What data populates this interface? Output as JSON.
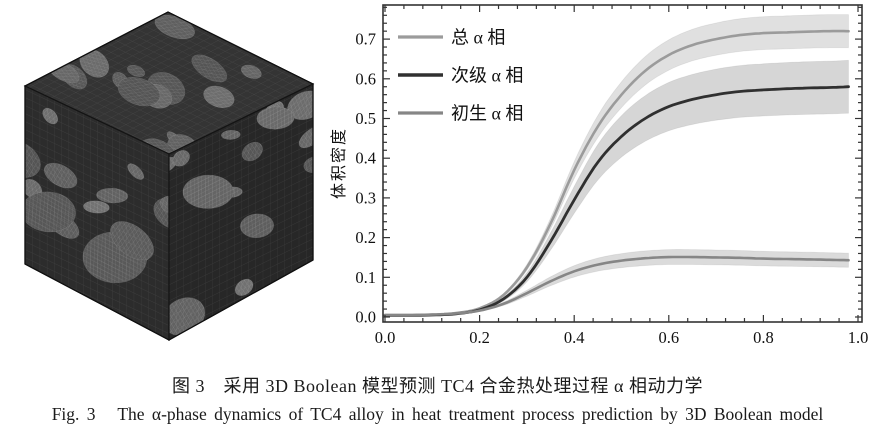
{
  "figure": {
    "caption_zh": "图 3　采用 3D Boolean 模型预测 TC4 合金热处理过程 α 相动力学",
    "caption_en": "Fig. 3   The α-phase dynamics of TC4 alloy in heat treatment process prediction by 3D Boolean model"
  },
  "cube": {
    "alt": "3D Boolean model mesh cube of simulated TC4 microstructure: gray ellipsoidal α-phase particles on dark matrix",
    "face_colors": {
      "top": "#343434",
      "left": "#2c2c2c",
      "right": "#272727"
    },
    "edge_color": "#141414",
    "mesh_line_color": "rgba(255,255,255,0.10)",
    "particle_mesh_color": "rgba(255,255,255,0.22)",
    "particle_gray_min": 84,
    "particle_gray_max": 114,
    "particles_per_face": 15,
    "seed": 11
  },
  "chart_data": {
    "type": "line",
    "title": "",
    "xlabel": "",
    "ylabel": "体积密度",
    "xlim": [
      0,
      1.0
    ],
    "ylim": [
      0,
      0.785
    ],
    "grid": false,
    "legend_position": "top-left",
    "x_tick_values": [
      0,
      0.2,
      0.4,
      0.6,
      0.8,
      1.0
    ],
    "x_tick_labels": [
      "0.0",
      "0.2",
      "0.4",
      "0.6",
      "0.8",
      "1.0"
    ],
    "y_tick_values": [
      0,
      0.1,
      0.2,
      0.3,
      0.4,
      0.5,
      0.6,
      0.7
    ],
    "y_tick_labels": [
      "0.0",
      "0.1",
      "0.2",
      "0.3",
      "0.4",
      "0.5",
      "0.6",
      "0.7"
    ],
    "minor_x_step": 0.04,
    "minor_y_step": 0.02,
    "frame_color": "#333333",
    "text_color": "#111111",
    "x": [
      0,
      0.05,
      0.1,
      0.15,
      0.2,
      0.25,
      0.3,
      0.35,
      0.4,
      0.45,
      0.5,
      0.55,
      0.6,
      0.65,
      0.7,
      0.75,
      0.8,
      0.85,
      0.9,
      0.94,
      0.98
    ],
    "series": [
      {
        "name": "总 α 相",
        "color": "#9b9b9b",
        "line_width": 2.6,
        "band_frac": 0.058,
        "band_color": "rgba(0,0,0,0.12)",
        "values": [
          0.005,
          0.005,
          0.006,
          0.01,
          0.022,
          0.055,
          0.125,
          0.235,
          0.37,
          0.48,
          0.56,
          0.62,
          0.66,
          0.685,
          0.7,
          0.71,
          0.715,
          0.717,
          0.719,
          0.72,
          0.72
        ]
      },
      {
        "name": "次级 α 相",
        "color": "#303030",
        "line_width": 2.8,
        "band_frac": 0.115,
        "band_color": "rgba(0,0,0,0.16)",
        "values": [
          0.004,
          0.004,
          0.005,
          0.008,
          0.018,
          0.045,
          0.1,
          0.19,
          0.295,
          0.39,
          0.455,
          0.5,
          0.53,
          0.548,
          0.56,
          0.568,
          0.572,
          0.575,
          0.577,
          0.578,
          0.58
        ]
      },
      {
        "name": "初生 α 相",
        "color": "#868686",
        "line_width": 2.6,
        "band_frac": 0.125,
        "band_color": "rgba(0,0,0,0.14)",
        "values": [
          0.005,
          0.005,
          0.006,
          0.009,
          0.016,
          0.033,
          0.06,
          0.09,
          0.115,
          0.132,
          0.142,
          0.148,
          0.151,
          0.151,
          0.15,
          0.149,
          0.147,
          0.146,
          0.145,
          0.144,
          0.143
        ]
      }
    ]
  }
}
